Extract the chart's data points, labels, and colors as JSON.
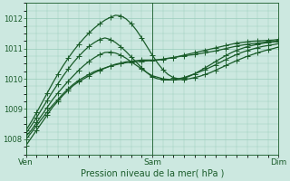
{
  "xlabel": "Pression niveau de la mer( hPa )",
  "xtick_labels": [
    "Ven",
    "Sam",
    "Dim"
  ],
  "xtick_positions": [
    0,
    24,
    48
  ],
  "ylim": [
    1007.5,
    1012.5
  ],
  "yticks": [
    1008,
    1009,
    1010,
    1011,
    1012
  ],
  "background_color": "#cce8e0",
  "grid_color": "#99ccbb",
  "line_color": "#1a5c2a",
  "lines": [
    {
      "y": [
        1007.8,
        1008.05,
        1008.3,
        1008.55,
        1008.8,
        1009.05,
        1009.25,
        1009.45,
        1009.62,
        1009.78,
        1009.9,
        1010.0,
        1010.1,
        1010.2,
        1010.28,
        1010.35,
        1010.42,
        1010.48,
        1010.52,
        1010.56,
        1010.58,
        1010.6,
        1010.62,
        1010.62,
        1010.62,
        1010.63,
        1010.65,
        1010.68,
        1010.7,
        1010.73,
        1010.76,
        1010.78,
        1010.8,
        1010.83,
        1010.86,
        1010.89,
        1010.92,
        1010.96,
        1011.0,
        1011.04,
        1011.08,
        1011.11,
        1011.14,
        1011.16,
        1011.18,
        1011.2,
        1011.22,
        1011.23,
        1011.25
      ],
      "style": "solid"
    },
    {
      "y": [
        1008.0,
        1008.22,
        1008.45,
        1008.68,
        1008.9,
        1009.12,
        1009.3,
        1009.5,
        1009.67,
        1009.82,
        1009.95,
        1010.05,
        1010.15,
        1010.24,
        1010.3,
        1010.36,
        1010.42,
        1010.46,
        1010.5,
        1010.53,
        1010.55,
        1010.57,
        1010.58,
        1010.59,
        1010.6,
        1010.62,
        1010.64,
        1010.67,
        1010.7,
        1010.74,
        1010.78,
        1010.82,
        1010.86,
        1010.9,
        1010.94,
        1010.98,
        1011.02,
        1011.06,
        1011.1,
        1011.14,
        1011.18,
        1011.2,
        1011.22,
        1011.24,
        1011.25,
        1011.26,
        1011.27,
        1011.28,
        1011.3
      ],
      "style": "solid"
    },
    {
      "y": [
        1008.1,
        1008.3,
        1008.55,
        1008.8,
        1009.05,
        1009.3,
        1009.52,
        1009.72,
        1009.92,
        1010.1,
        1010.28,
        1010.44,
        1010.58,
        1010.7,
        1010.8,
        1010.87,
        1010.88,
        1010.85,
        1010.78,
        1010.68,
        1010.56,
        1010.44,
        1010.32,
        1010.2,
        1010.1,
        1010.05,
        1010.0,
        1009.98,
        1009.96,
        1009.97,
        1009.98,
        1010.0,
        1010.04,
        1010.08,
        1010.14,
        1010.2,
        1010.28,
        1010.36,
        1010.44,
        1010.52,
        1010.6,
        1010.67,
        1010.74,
        1010.8,
        1010.86,
        1010.91,
        1010.96,
        1011.0,
        1011.05
      ],
      "style": "dashed"
    },
    {
      "y": [
        1008.2,
        1008.45,
        1008.72,
        1009.0,
        1009.28,
        1009.56,
        1009.82,
        1010.08,
        1010.32,
        1010.54,
        1010.74,
        1010.92,
        1011.08,
        1011.2,
        1011.3,
        1011.35,
        1011.3,
        1011.2,
        1011.06,
        1010.9,
        1010.72,
        1010.54,
        1010.36,
        1010.2,
        1010.06,
        1010.0,
        1009.97,
        1009.96,
        1009.97,
        1010.0,
        1010.04,
        1010.1,
        1010.16,
        1010.23,
        1010.3,
        1010.38,
        1010.46,
        1010.55,
        1010.64,
        1010.72,
        1010.8,
        1010.87,
        1010.93,
        1010.98,
        1011.03,
        1011.07,
        1011.1,
        1011.13,
        1011.16
      ],
      "style": "dashed"
    },
    {
      "y": [
        1008.3,
        1008.58,
        1008.88,
        1009.2,
        1009.52,
        1009.84,
        1010.14,
        1010.42,
        1010.68,
        1010.92,
        1011.14,
        1011.34,
        1011.52,
        1011.68,
        1011.82,
        1011.94,
        1012.03,
        1012.1,
        1012.08,
        1011.98,
        1011.82,
        1011.6,
        1011.34,
        1011.06,
        1010.78,
        1010.52,
        1010.3,
        1010.14,
        1010.04,
        1010.0,
        1010.02,
        1010.08,
        1010.16,
        1010.26,
        1010.36,
        1010.46,
        1010.57,
        1010.67,
        1010.77,
        1010.86,
        1010.94,
        1011.0,
        1011.06,
        1011.1,
        1011.14,
        1011.17,
        1011.2,
        1011.22,
        1011.24
      ],
      "style": "dotted"
    }
  ],
  "marker": "+",
  "markersize": 4,
  "linewidth": 0.9,
  "figsize": [
    3.2,
    2.0
  ],
  "dpi": 100
}
